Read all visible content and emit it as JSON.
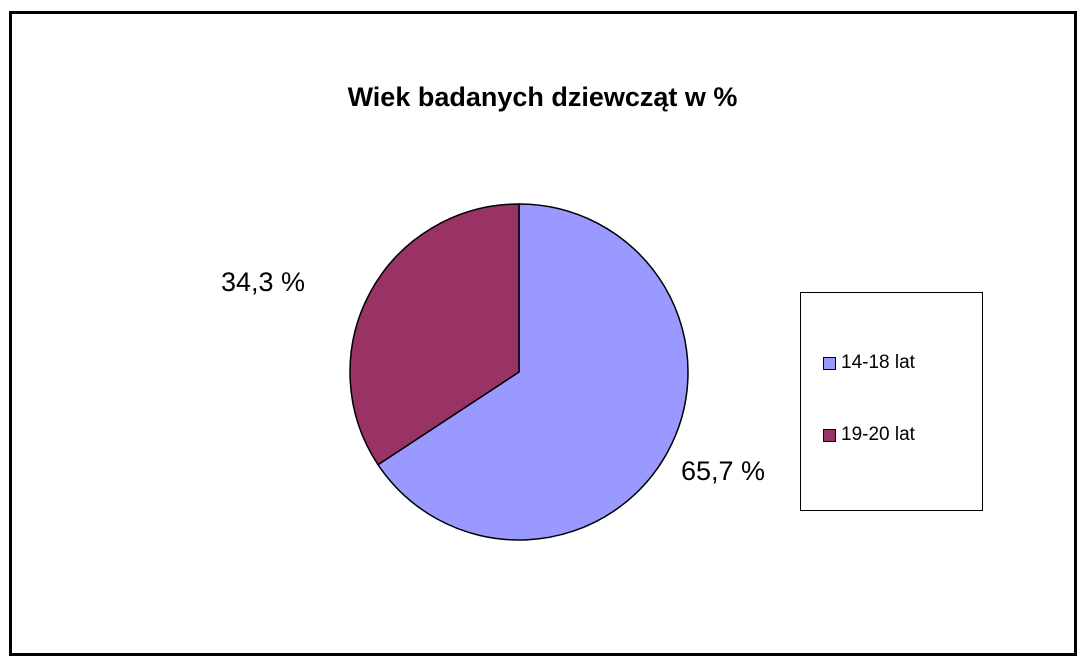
{
  "chart_data": {
    "type": "pie",
    "title": "Wiek badanych dziewcząt w %",
    "categories": [
      "14-18 lat",
      "19-20 lat"
    ],
    "values": [
      65.7,
      34.3
    ],
    "data_labels": [
      "65,7 %",
      "34,3 %"
    ],
    "colors": [
      "#9999ff",
      "#993366"
    ],
    "legend_position": "right"
  }
}
